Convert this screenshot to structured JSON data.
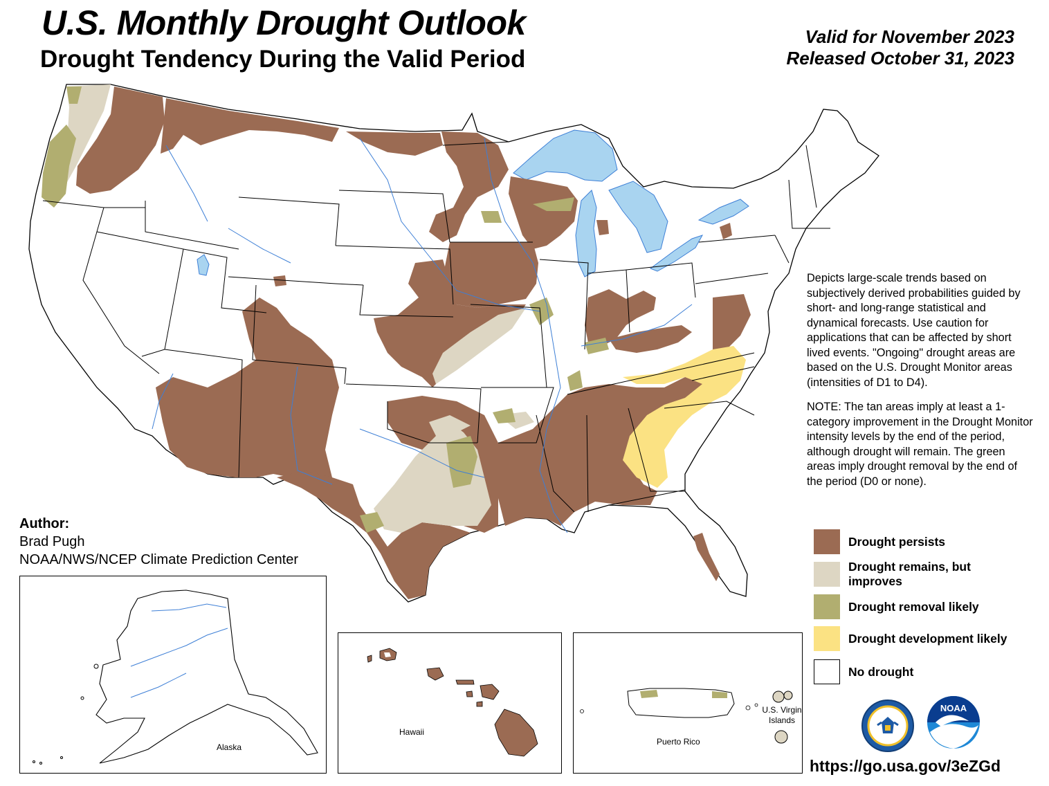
{
  "header": {
    "title": "U.S. Monthly Drought Outlook",
    "subtitle": "Drought Tendency During the Valid Period",
    "valid_for": "Valid for November 2023",
    "released": "Released October 31, 2023"
  },
  "description": {
    "paragraph1": "Depicts large-scale trends based on subjectively derived probabilities guided by short- and long-range statistical and dynamical forecasts. Use caution for applications that can be affected by short lived events. \"Ongoing\" drought areas are based on the U.S. Drought Monitor areas (intensities of D1 to D4).",
    "paragraph2": "NOTE: The tan areas imply at least a 1-category improvement in the Drought Monitor intensity levels by the end of the period, although drought will remain. The green areas imply drought removal by the end of the period (D0 or none)."
  },
  "legend": {
    "items": [
      {
        "label": "Drought persists",
        "color": "#9b6b53"
      },
      {
        "label": "Drought remains, but improves",
        "color": "#ddd6c3"
      },
      {
        "label": "Drought removal likely",
        "color": "#b1ae70"
      },
      {
        "label": "Drought development likely",
        "color": "#fbe283"
      },
      {
        "label": "No drought",
        "color": "#ffffff"
      }
    ]
  },
  "author": {
    "heading": "Author:",
    "name": "Brad Pugh",
    "organization": "NOAA/NWS/NCEP Climate Prediction Center"
  },
  "insets": {
    "alaska": "Alaska",
    "hawaii": "Hawaii",
    "puerto_rico": "Puerto Rico",
    "virgin_islands_line1": "U.S. Virgin",
    "virgin_islands_line2": "Islands"
  },
  "logos": {
    "noaa_text": "NOAA",
    "commerce_seal": "Department of Commerce seal"
  },
  "url": "https://go.usa.gov/3eZGd",
  "colors": {
    "water": "#a9d4f0",
    "river": "#3d7fd6",
    "border": "#000000"
  }
}
